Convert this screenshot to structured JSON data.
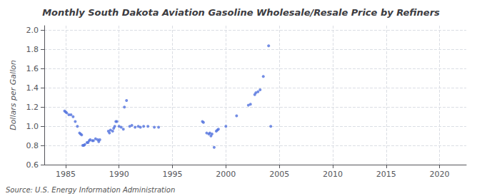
{
  "chart_data": {
    "type": "scatter",
    "title": "Monthly South Dakota Aviation Gasoline Wholesale/Resale Price by Refiners",
    "ylabel": "Dollars per Gallon",
    "source": "Source: U.S. Energy Information Administration",
    "xlim": [
      1983.0,
      2022.5
    ],
    "ylim": [
      0.6,
      2.05
    ],
    "xticks": [
      1985,
      1990,
      1995,
      2000,
      2005,
      2010,
      2015,
      2020
    ],
    "yticks": [
      0.6,
      0.8,
      {
        "value": 1.0,
        "label": "1.0"
      },
      1.2,
      1.4,
      1.6,
      1.8,
      {
        "value": 2.0,
        "label": "2.0"
      }
    ],
    "grid": true,
    "x": [
      1984.9,
      1985.0,
      1985.1,
      1985.3,
      1985.5,
      1985.7,
      1985.9,
      1986.1,
      1986.3,
      1986.4,
      1986.5,
      1986.6,
      1986.7,
      1986.8,
      1987.0,
      1987.1,
      1987.2,
      1987.3,
      1987.5,
      1987.6,
      1987.8,
      1988.0,
      1988.1,
      1988.2,
      1989.0,
      1989.1,
      1989.2,
      1989.4,
      1989.5,
      1989.6,
      1989.7,
      1989.8,
      1990.0,
      1990.2,
      1990.4,
      1990.5,
      1990.7,
      1991.0,
      1991.2,
      1991.5,
      1991.8,
      1992.0,
      1992.3,
      1992.7,
      1993.3,
      1993.7,
      1997.8,
      1997.9,
      1998.2,
      1998.4,
      1998.5,
      1998.6,
      1998.7,
      1998.9,
      1999.1,
      1999.2,
      1999.3,
      2000.0,
      2001.0,
      2002.1,
      2002.3,
      2002.7,
      2002.8,
      2003.0,
      2003.2,
      2003.5,
      2004.0,
      2004.2
    ],
    "values": [
      1.16,
      1.15,
      1.14,
      1.12,
      1.12,
      1.1,
      1.05,
      1.0,
      0.93,
      0.92,
      0.91,
      0.8,
      0.8,
      0.81,
      0.83,
      0.83,
      0.85,
      0.86,
      0.85,
      0.85,
      0.87,
      0.86,
      0.84,
      0.86,
      0.95,
      0.93,
      0.96,
      0.95,
      0.98,
      1.0,
      1.05,
      1.05,
      1.0,
      0.99,
      0.97,
      1.2,
      1.27,
      1.0,
      1.01,
      0.99,
      1.0,
      0.99,
      1.0,
      1.0,
      0.99,
      0.99,
      1.05,
      1.04,
      0.93,
      0.92,
      0.93,
      0.9,
      0.92,
      0.78,
      0.95,
      0.96,
      0.97,
      1.0,
      1.11,
      1.22,
      1.23,
      1.33,
      1.35,
      1.36,
      1.38,
      1.52,
      1.84,
      1.0
    ]
  }
}
